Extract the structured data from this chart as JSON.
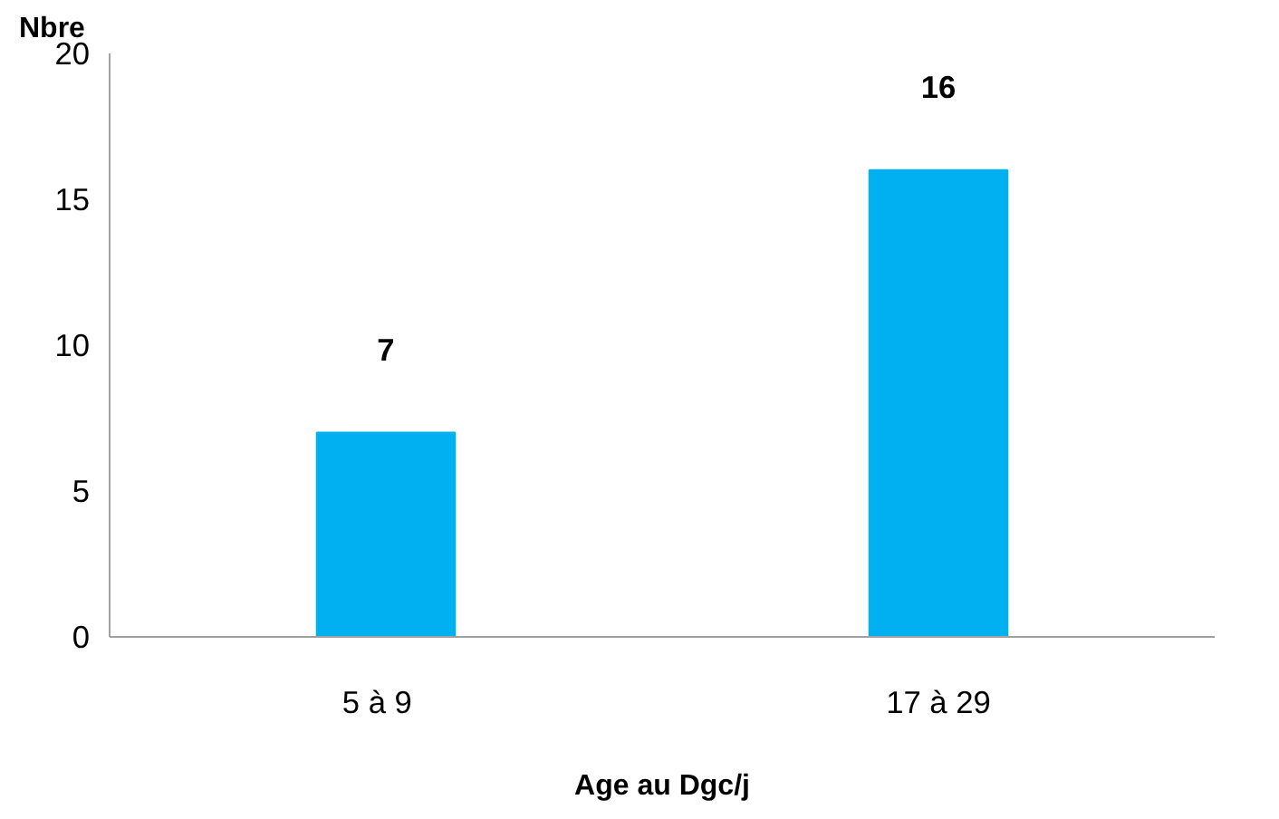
{
  "chart_data": {
    "type": "bar",
    "ylabel": "Nbre",
    "xlabel": "Age au Dgc/j",
    "categories": [
      "5  à  9",
      "17 à 29"
    ],
    "values": [
      7,
      16
    ],
    "color": "#00b0f0",
    "ylim": [
      0,
      20
    ],
    "yticks": [
      0,
      5,
      10,
      15,
      20
    ],
    "data_labels": true,
    "grid": false
  }
}
